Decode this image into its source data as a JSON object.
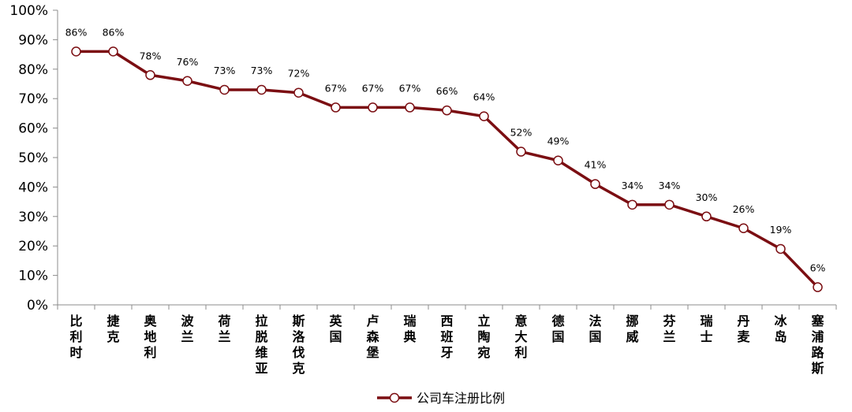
{
  "chart_data": {
    "type": "line",
    "title": "",
    "xlabel": "",
    "ylabel": "",
    "ylim": [
      0,
      100
    ],
    "y_ticks": [
      "0%",
      "10%",
      "20%",
      "30%",
      "40%",
      "50%",
      "60%",
      "70%",
      "80%",
      "90%",
      "100%"
    ],
    "grid": false,
    "legend_position": "bottom",
    "categories": [
      "比利时",
      "捷克",
      "奥地利",
      "波兰",
      "荷兰",
      "拉脱维亚",
      "斯洛伐克",
      "英国",
      "卢森堡",
      "瑞典",
      "西班牙",
      "立陶宛",
      "意大利",
      "德国",
      "法国",
      "挪威",
      "芬兰",
      "瑞士",
      "丹麦",
      "冰岛",
      "塞浦路斯"
    ],
    "series": [
      {
        "name": "公司车注册比例",
        "color": "#7b0e12",
        "values": [
          86,
          86,
          78,
          76,
          73,
          73,
          72,
          67,
          67,
          67,
          66,
          64,
          52,
          49,
          41,
          34,
          34,
          30,
          26,
          19,
          6
        ],
        "labels": [
          "86%",
          "86%",
          "78%",
          "76%",
          "73%",
          "73%",
          "72%",
          "67%",
          "67%",
          "67%",
          "66%",
          "64%",
          "52%",
          "49%",
          "41%",
          "34%",
          "34%",
          "30%",
          "26%",
          "19%",
          "6%"
        ]
      }
    ]
  }
}
